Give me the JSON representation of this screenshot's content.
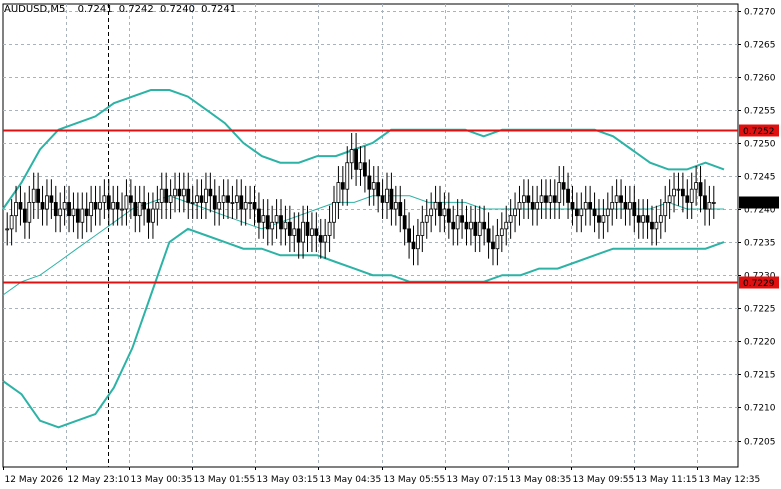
{
  "header": {
    "symbol": "AUDUSD,M5",
    "open": "0.7241",
    "high": "0.7242",
    "low": "0.7240",
    "close": "0.7241"
  },
  "colors": {
    "background": "#ffffff",
    "grid": "#a9b3bd",
    "candle": "#000000",
    "bands": "#2cb3a6",
    "middle_band": "#2cb3a6",
    "level_line": "#e01010",
    "level_label_bg": "#e01010",
    "price_label_bg": "#000000"
  },
  "chart_data": {
    "type": "candlestick",
    "y_axis": {
      "min": 0.7201,
      "max": 0.7271,
      "ticks": [
        "0.7205",
        "0.7210",
        "0.7215",
        "0.7220",
        "0.7225",
        "0.7230",
        "0.7235",
        "0.7240",
        "0.7245",
        "0.7250",
        "0.7255",
        "0.7260",
        "0.7265",
        "0.7270"
      ]
    },
    "x_ticks": [
      "12 May 2026",
      "12 May 23:10",
      "13 May 00:35",
      "13 May 01:55",
      "13 May 03:15",
      "13 May 04:35",
      "13 May 05:55",
      "13 May 07:15",
      "13 May 08:35",
      "13 May 09:55",
      "13 May 11:15",
      "13 May 12:35"
    ],
    "grid": true,
    "vertical_marker_at": "12 May 23:10",
    "horizontal_levels": [
      {
        "label": "0.7252",
        "value": 0.7252
      },
      {
        "label": "0.7229",
        "value": 0.7229
      }
    ],
    "current_price": {
      "label": "0.7241",
      "value": 0.7241
    },
    "indicator": "Bollinger Bands",
    "candle_closes": [
      0.7237,
      0.7239,
      0.7241,
      0.724,
      0.7238,
      0.7241,
      0.7243,
      0.7241,
      0.724,
      0.7242,
      0.7241,
      0.7239,
      0.724,
      0.7241,
      0.7239,
      0.724,
      0.7238,
      0.724,
      0.7239,
      0.7241,
      0.724,
      0.7241,
      0.7242,
      0.724,
      0.7241,
      0.724,
      0.724,
      0.7242,
      0.7241,
      0.7239,
      0.7241,
      0.724,
      0.7238,
      0.724,
      0.7241,
      0.7243,
      0.7241,
      0.7242,
      0.7243,
      0.7242,
      0.7243,
      0.7241,
      0.7241,
      0.7242,
      0.7241,
      0.7243,
      0.7242,
      0.724,
      0.7241,
      0.7242,
      0.7241,
      0.7241,
      0.7242,
      0.724,
      0.7241,
      0.7241,
      0.724,
      0.7238,
      0.7239,
      0.7237,
      0.7238,
      0.7239,
      0.7237,
      0.7238,
      0.7236,
      0.7237,
      0.7235,
      0.7238,
      0.7236,
      0.7237,
      0.7236,
      0.7235,
      0.7236,
      0.7238,
      0.7241,
      0.7244,
      0.7243,
      0.7247,
      0.7249,
      0.7246,
      0.7247,
      0.7245,
      0.7243,
      0.7244,
      0.7242,
      0.7241,
      0.7243,
      0.724,
      0.7241,
      0.7239,
      0.7237,
      0.7235,
      0.7234,
      0.7236,
      0.7238,
      0.7239,
      0.724,
      0.7241,
      0.7239,
      0.724,
      0.7238,
      0.7237,
      0.7239,
      0.7238,
      0.7237,
      0.7238,
      0.7236,
      0.7238,
      0.7237,
      0.7235,
      0.7234,
      0.7236,
      0.7237,
      0.7238,
      0.7239,
      0.724,
      0.7241,
      0.7242,
      0.7241,
      0.724,
      0.7241,
      0.7242,
      0.7241,
      0.7242,
      0.7241,
      0.7244,
      0.7243,
      0.7241,
      0.724,
      0.7239,
      0.724,
      0.7241,
      0.724,
      0.7239,
      0.7238,
      0.7239,
      0.724,
      0.7241,
      0.7242,
      0.7241,
      0.724,
      0.7241,
      0.7239,
      0.7238,
      0.7239,
      0.7238,
      0.7237,
      0.7238,
      0.7239,
      0.7241,
      0.7242,
      0.7243,
      0.7243,
      0.7242,
      0.7241,
      0.7243,
      0.7244,
      0.7242,
      0.724,
      0.7241,
      0.7241
    ],
    "upper_band": [
      0.724,
      0.7244,
      0.7249,
      0.7252,
      0.7253,
      0.7254,
      0.7256,
      0.7257,
      0.7258,
      0.7258,
      0.7257,
      0.7255,
      0.7253,
      0.725,
      0.7248,
      0.7247,
      0.7247,
      0.7248,
      0.7248,
      0.7249,
      0.725,
      0.7252,
      0.7252,
      0.7252,
      0.7252,
      0.7252,
      0.7251,
      0.7252,
      0.7252,
      0.7252,
      0.7252,
      0.7252,
      0.7252,
      0.7251,
      0.7249,
      0.7247,
      0.7246,
      0.7246,
      0.7247,
      0.7246
    ],
    "middle_band": [
      0.7227,
      0.7229,
      0.723,
      0.7232,
      0.7234,
      0.7236,
      0.7238,
      0.724,
      0.7241,
      0.7242,
      0.7241,
      0.724,
      0.7239,
      0.7238,
      0.7237,
      0.7238,
      0.7239,
      0.724,
      0.7241,
      0.7241,
      0.7242,
      0.7242,
      0.7242,
      0.7241,
      0.7241,
      0.7241,
      0.724,
      0.724,
      0.724,
      0.724,
      0.724,
      0.724,
      0.724,
      0.724,
      0.724,
      0.724,
      0.7241,
      0.724,
      0.724,
      0.724
    ],
    "lower_band": [
      0.7214,
      0.7212,
      0.7208,
      0.7207,
      0.7208,
      0.7209,
      0.7213,
      0.7219,
      0.7227,
      0.7235,
      0.7237,
      0.7236,
      0.7235,
      0.7234,
      0.7234,
      0.7233,
      0.7233,
      0.7233,
      0.7232,
      0.7231,
      0.723,
      0.723,
      0.7229,
      0.7229,
      0.7229,
      0.7229,
      0.7229,
      0.723,
      0.723,
      0.7231,
      0.7231,
      0.7232,
      0.7233,
      0.7234,
      0.7234,
      0.7234,
      0.7234,
      0.7234,
      0.7234,
      0.7235
    ]
  }
}
